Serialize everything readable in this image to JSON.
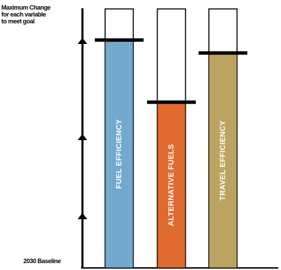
{
  "chart_data": {
    "type": "bar",
    "categories": [
      "FUEL EFFICIENCY",
      "ALTERNATIVE FUELS",
      "TRAVEL EFFICIENCY"
    ],
    "values": [
      0.88,
      0.64,
      0.83
    ],
    "value_unit": "fraction of maximum change",
    "max_change": 1.0,
    "ylim": [
      0,
      1.0
    ],
    "top_label_lines": [
      "Maximum Change",
      "for each variable",
      "to meet goal"
    ],
    "baseline_label": "2030 Baseline",
    "colors": {
      "FUEL EFFICIENCY": "#72a9cc",
      "ALTERNATIVE FUELS": "#e06a2d",
      "TRAVEL EFFICIENCY": "#bba462",
      "outline": "#000000"
    },
    "arrow_markers": 3
  }
}
